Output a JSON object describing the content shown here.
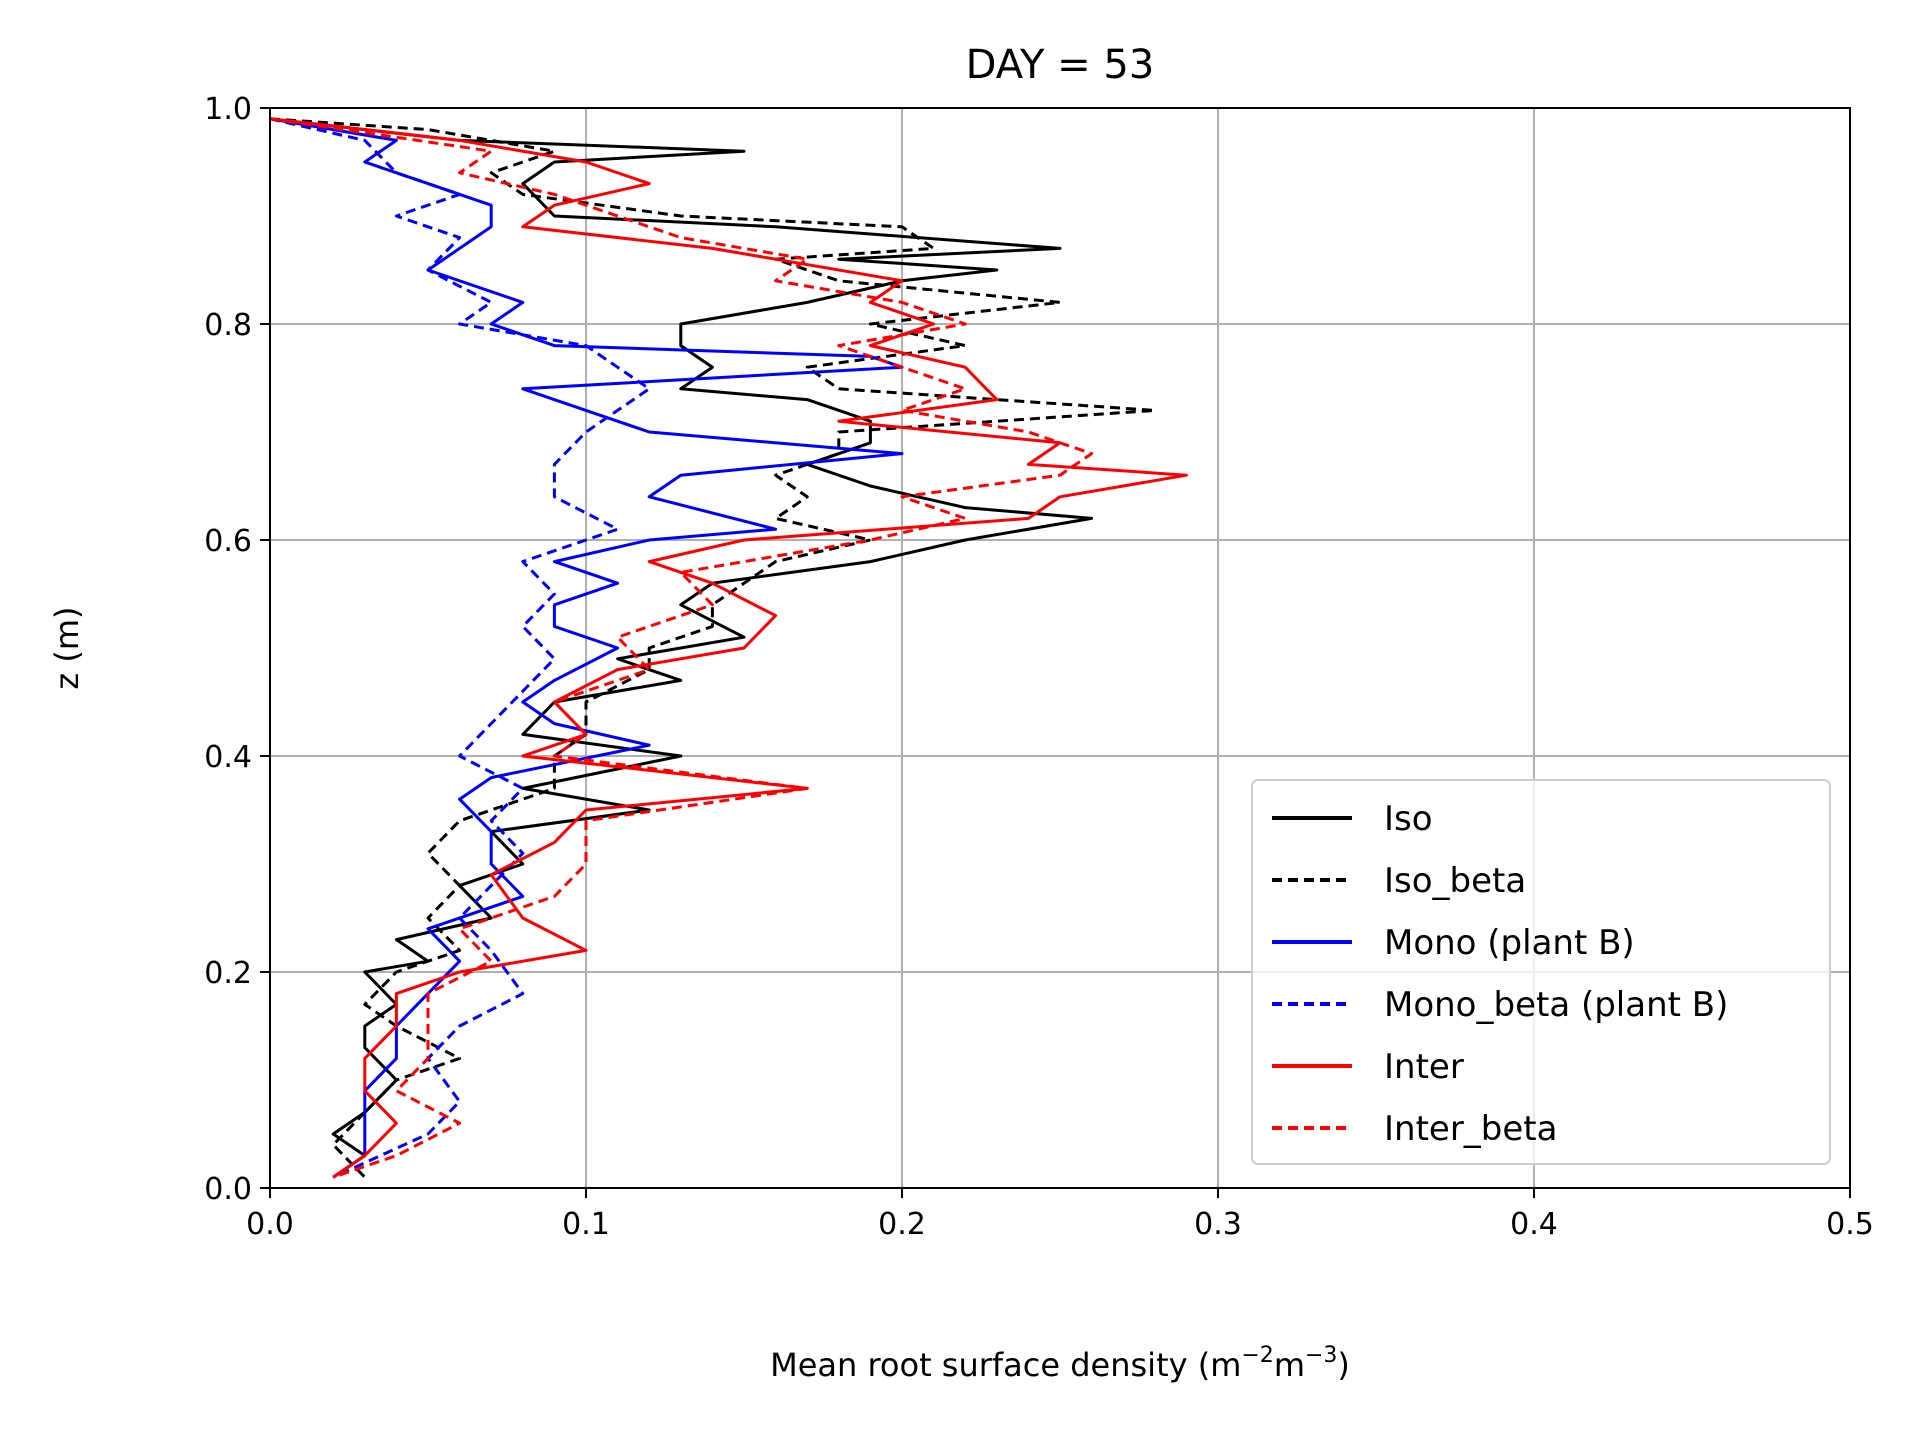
{
  "chart_data": {
    "type": "line",
    "title": "DAY = 53",
    "xlabel": "Mean root surface density (m",
    "xlabel_sup1": "−2",
    "xlabel_mid": "m",
    "xlabel_sup2": "−3",
    "xlabel_end": ")",
    "ylabel": "z (m)",
    "xlim": [
      0.0,
      0.5
    ],
    "ylim": [
      0.0,
      1.0
    ],
    "xticks": [
      "0.0",
      "0.1",
      "0.2",
      "0.3",
      "0.4",
      "0.5"
    ],
    "yticks": [
      "0.0",
      "0.2",
      "0.4",
      "0.6",
      "0.8",
      "1.0"
    ],
    "grid": true,
    "legend_position": "lower-right",
    "series": [
      {
        "name": "Iso",
        "color": "#000000",
        "dash": "solid",
        "points": [
          [
            0.0,
            0.99
          ],
          [
            0.06,
            0.97
          ],
          [
            0.15,
            0.96
          ],
          [
            0.09,
            0.95
          ],
          [
            0.08,
            0.93
          ],
          [
            0.09,
            0.9
          ],
          [
            0.16,
            0.89
          ],
          [
            0.25,
            0.87
          ],
          [
            0.18,
            0.86
          ],
          [
            0.23,
            0.85
          ],
          [
            0.2,
            0.84
          ],
          [
            0.17,
            0.82
          ],
          [
            0.13,
            0.8
          ],
          [
            0.13,
            0.78
          ],
          [
            0.14,
            0.76
          ],
          [
            0.13,
            0.74
          ],
          [
            0.17,
            0.73
          ],
          [
            0.19,
            0.71
          ],
          [
            0.19,
            0.69
          ],
          [
            0.17,
            0.67
          ],
          [
            0.19,
            0.65
          ],
          [
            0.22,
            0.63
          ],
          [
            0.26,
            0.62
          ],
          [
            0.22,
            0.6
          ],
          [
            0.19,
            0.58
          ],
          [
            0.14,
            0.56
          ],
          [
            0.13,
            0.54
          ],
          [
            0.15,
            0.51
          ],
          [
            0.11,
            0.49
          ],
          [
            0.13,
            0.47
          ],
          [
            0.09,
            0.45
          ],
          [
            0.08,
            0.42
          ],
          [
            0.13,
            0.4
          ],
          [
            0.08,
            0.37
          ],
          [
            0.12,
            0.35
          ],
          [
            0.07,
            0.33
          ],
          [
            0.08,
            0.3
          ],
          [
            0.06,
            0.28
          ],
          [
            0.07,
            0.25
          ],
          [
            0.04,
            0.23
          ],
          [
            0.05,
            0.21
          ],
          [
            0.03,
            0.2
          ],
          [
            0.04,
            0.17
          ],
          [
            0.03,
            0.15
          ],
          [
            0.03,
            0.13
          ],
          [
            0.04,
            0.1
          ],
          [
            0.03,
            0.07
          ],
          [
            0.02,
            0.05
          ],
          [
            0.03,
            0.03
          ],
          [
            0.02,
            0.01
          ]
        ]
      },
      {
        "name": "Iso_beta",
        "color": "#000000",
        "dash": "dashed",
        "points": [
          [
            0.0,
            0.99
          ],
          [
            0.05,
            0.98
          ],
          [
            0.09,
            0.96
          ],
          [
            0.07,
            0.94
          ],
          [
            0.08,
            0.92
          ],
          [
            0.13,
            0.9
          ],
          [
            0.2,
            0.89
          ],
          [
            0.21,
            0.87
          ],
          [
            0.16,
            0.86
          ],
          [
            0.18,
            0.84
          ],
          [
            0.25,
            0.82
          ],
          [
            0.19,
            0.8
          ],
          [
            0.22,
            0.78
          ],
          [
            0.17,
            0.76
          ],
          [
            0.18,
            0.74
          ],
          [
            0.28,
            0.72
          ],
          [
            0.18,
            0.7
          ],
          [
            0.18,
            0.68
          ],
          [
            0.16,
            0.66
          ],
          [
            0.17,
            0.64
          ],
          [
            0.16,
            0.62
          ],
          [
            0.19,
            0.6
          ],
          [
            0.16,
            0.58
          ],
          [
            0.15,
            0.56
          ],
          [
            0.14,
            0.54
          ],
          [
            0.14,
            0.52
          ],
          [
            0.12,
            0.5
          ],
          [
            0.12,
            0.48
          ],
          [
            0.1,
            0.45
          ],
          [
            0.1,
            0.42
          ],
          [
            0.09,
            0.4
          ],
          [
            0.09,
            0.37
          ],
          [
            0.06,
            0.34
          ],
          [
            0.05,
            0.31
          ],
          [
            0.06,
            0.28
          ],
          [
            0.05,
            0.25
          ],
          [
            0.06,
            0.22
          ],
          [
            0.04,
            0.2
          ],
          [
            0.03,
            0.17
          ],
          [
            0.04,
            0.15
          ],
          [
            0.06,
            0.12
          ],
          [
            0.04,
            0.1
          ],
          [
            0.03,
            0.07
          ],
          [
            0.02,
            0.04
          ],
          [
            0.03,
            0.01
          ]
        ]
      },
      {
        "name": "Mono (plant B)",
        "color": "#0000ff",
        "dash": "solid",
        "points": [
          [
            0.0,
            0.99
          ],
          [
            0.04,
            0.97
          ],
          [
            0.03,
            0.95
          ],
          [
            0.05,
            0.93
          ],
          [
            0.07,
            0.91
          ],
          [
            0.07,
            0.89
          ],
          [
            0.05,
            0.85
          ],
          [
            0.08,
            0.82
          ],
          [
            0.07,
            0.8
          ],
          [
            0.09,
            0.78
          ],
          [
            0.19,
            0.77
          ],
          [
            0.2,
            0.76
          ],
          [
            0.08,
            0.74
          ],
          [
            0.1,
            0.72
          ],
          [
            0.12,
            0.7
          ],
          [
            0.2,
            0.68
          ],
          [
            0.13,
            0.66
          ],
          [
            0.12,
            0.64
          ],
          [
            0.16,
            0.61
          ],
          [
            0.12,
            0.6
          ],
          [
            0.09,
            0.58
          ],
          [
            0.11,
            0.56
          ],
          [
            0.09,
            0.54
          ],
          [
            0.09,
            0.52
          ],
          [
            0.11,
            0.5
          ],
          [
            0.09,
            0.47
          ],
          [
            0.08,
            0.45
          ],
          [
            0.09,
            0.43
          ],
          [
            0.12,
            0.41
          ],
          [
            0.07,
            0.38
          ],
          [
            0.06,
            0.36
          ],
          [
            0.07,
            0.33
          ],
          [
            0.07,
            0.3
          ],
          [
            0.08,
            0.27
          ],
          [
            0.05,
            0.24
          ],
          [
            0.06,
            0.21
          ],
          [
            0.05,
            0.18
          ],
          [
            0.04,
            0.15
          ],
          [
            0.04,
            0.12
          ],
          [
            0.03,
            0.09
          ],
          [
            0.03,
            0.06
          ],
          [
            0.03,
            0.03
          ],
          [
            0.02,
            0.01
          ]
        ]
      },
      {
        "name": "Mono_beta (plant B)",
        "color": "#0000ff",
        "dash": "dashed",
        "points": [
          [
            0.0,
            0.99
          ],
          [
            0.03,
            0.97
          ],
          [
            0.04,
            0.94
          ],
          [
            0.06,
            0.92
          ],
          [
            0.04,
            0.9
          ],
          [
            0.06,
            0.88
          ],
          [
            0.05,
            0.85
          ],
          [
            0.07,
            0.82
          ],
          [
            0.06,
            0.8
          ],
          [
            0.1,
            0.78
          ],
          [
            0.11,
            0.76
          ],
          [
            0.12,
            0.74
          ],
          [
            0.11,
            0.72
          ],
          [
            0.1,
            0.7
          ],
          [
            0.09,
            0.67
          ],
          [
            0.09,
            0.64
          ],
          [
            0.11,
            0.61
          ],
          [
            0.08,
            0.58
          ],
          [
            0.09,
            0.55
          ],
          [
            0.08,
            0.52
          ],
          [
            0.09,
            0.49
          ],
          [
            0.08,
            0.46
          ],
          [
            0.07,
            0.43
          ],
          [
            0.06,
            0.4
          ],
          [
            0.08,
            0.37
          ],
          [
            0.07,
            0.34
          ],
          [
            0.08,
            0.31
          ],
          [
            0.07,
            0.28
          ],
          [
            0.06,
            0.25
          ],
          [
            0.07,
            0.22
          ],
          [
            0.08,
            0.18
          ],
          [
            0.06,
            0.15
          ],
          [
            0.05,
            0.12
          ],
          [
            0.06,
            0.08
          ],
          [
            0.05,
            0.05
          ],
          [
            0.02,
            0.01
          ]
        ]
      },
      {
        "name": "Inter",
        "color": "#ff0000",
        "dash": "solid",
        "points": [
          [
            0.0,
            0.99
          ],
          [
            0.06,
            0.97
          ],
          [
            0.1,
            0.95
          ],
          [
            0.12,
            0.93
          ],
          [
            0.09,
            0.91
          ],
          [
            0.08,
            0.89
          ],
          [
            0.14,
            0.87
          ],
          [
            0.2,
            0.84
          ],
          [
            0.19,
            0.82
          ],
          [
            0.21,
            0.8
          ],
          [
            0.19,
            0.78
          ],
          [
            0.22,
            0.76
          ],
          [
            0.23,
            0.73
          ],
          [
            0.18,
            0.71
          ],
          [
            0.25,
            0.69
          ],
          [
            0.24,
            0.67
          ],
          [
            0.29,
            0.66
          ],
          [
            0.25,
            0.64
          ],
          [
            0.24,
            0.62
          ],
          [
            0.15,
            0.6
          ],
          [
            0.12,
            0.58
          ],
          [
            0.14,
            0.56
          ],
          [
            0.16,
            0.53
          ],
          [
            0.15,
            0.5
          ],
          [
            0.11,
            0.48
          ],
          [
            0.09,
            0.45
          ],
          [
            0.1,
            0.42
          ],
          [
            0.08,
            0.4
          ],
          [
            0.17,
            0.37
          ],
          [
            0.1,
            0.35
          ],
          [
            0.09,
            0.32
          ],
          [
            0.07,
            0.29
          ],
          [
            0.08,
            0.25
          ],
          [
            0.1,
            0.22
          ],
          [
            0.06,
            0.2
          ],
          [
            0.04,
            0.18
          ],
          [
            0.04,
            0.15
          ],
          [
            0.03,
            0.12
          ],
          [
            0.03,
            0.09
          ],
          [
            0.04,
            0.06
          ],
          [
            0.03,
            0.03
          ],
          [
            0.02,
            0.01
          ]
        ]
      },
      {
        "name": "Inter_beta",
        "color": "#ff0000",
        "dash": "dashed",
        "points": [
          [
            0.0,
            0.99
          ],
          [
            0.07,
            0.96
          ],
          [
            0.06,
            0.94
          ],
          [
            0.09,
            0.92
          ],
          [
            0.13,
            0.88
          ],
          [
            0.17,
            0.86
          ],
          [
            0.16,
            0.84
          ],
          [
            0.2,
            0.82
          ],
          [
            0.22,
            0.8
          ],
          [
            0.18,
            0.78
          ],
          [
            0.2,
            0.76
          ],
          [
            0.22,
            0.74
          ],
          [
            0.2,
            0.72
          ],
          [
            0.24,
            0.7
          ],
          [
            0.26,
            0.68
          ],
          [
            0.25,
            0.66
          ],
          [
            0.2,
            0.64
          ],
          [
            0.22,
            0.62
          ],
          [
            0.19,
            0.6
          ],
          [
            0.13,
            0.57
          ],
          [
            0.14,
            0.54
          ],
          [
            0.11,
            0.51
          ],
          [
            0.12,
            0.48
          ],
          [
            0.09,
            0.45
          ],
          [
            0.1,
            0.42
          ],
          [
            0.09,
            0.4
          ],
          [
            0.17,
            0.37
          ],
          [
            0.1,
            0.34
          ],
          [
            0.1,
            0.3
          ],
          [
            0.09,
            0.27
          ],
          [
            0.06,
            0.24
          ],
          [
            0.07,
            0.21
          ],
          [
            0.05,
            0.18
          ],
          [
            0.05,
            0.15
          ],
          [
            0.05,
            0.12
          ],
          [
            0.04,
            0.09
          ],
          [
            0.06,
            0.06
          ],
          [
            0.04,
            0.03
          ],
          [
            0.02,
            0.01
          ]
        ]
      }
    ]
  }
}
